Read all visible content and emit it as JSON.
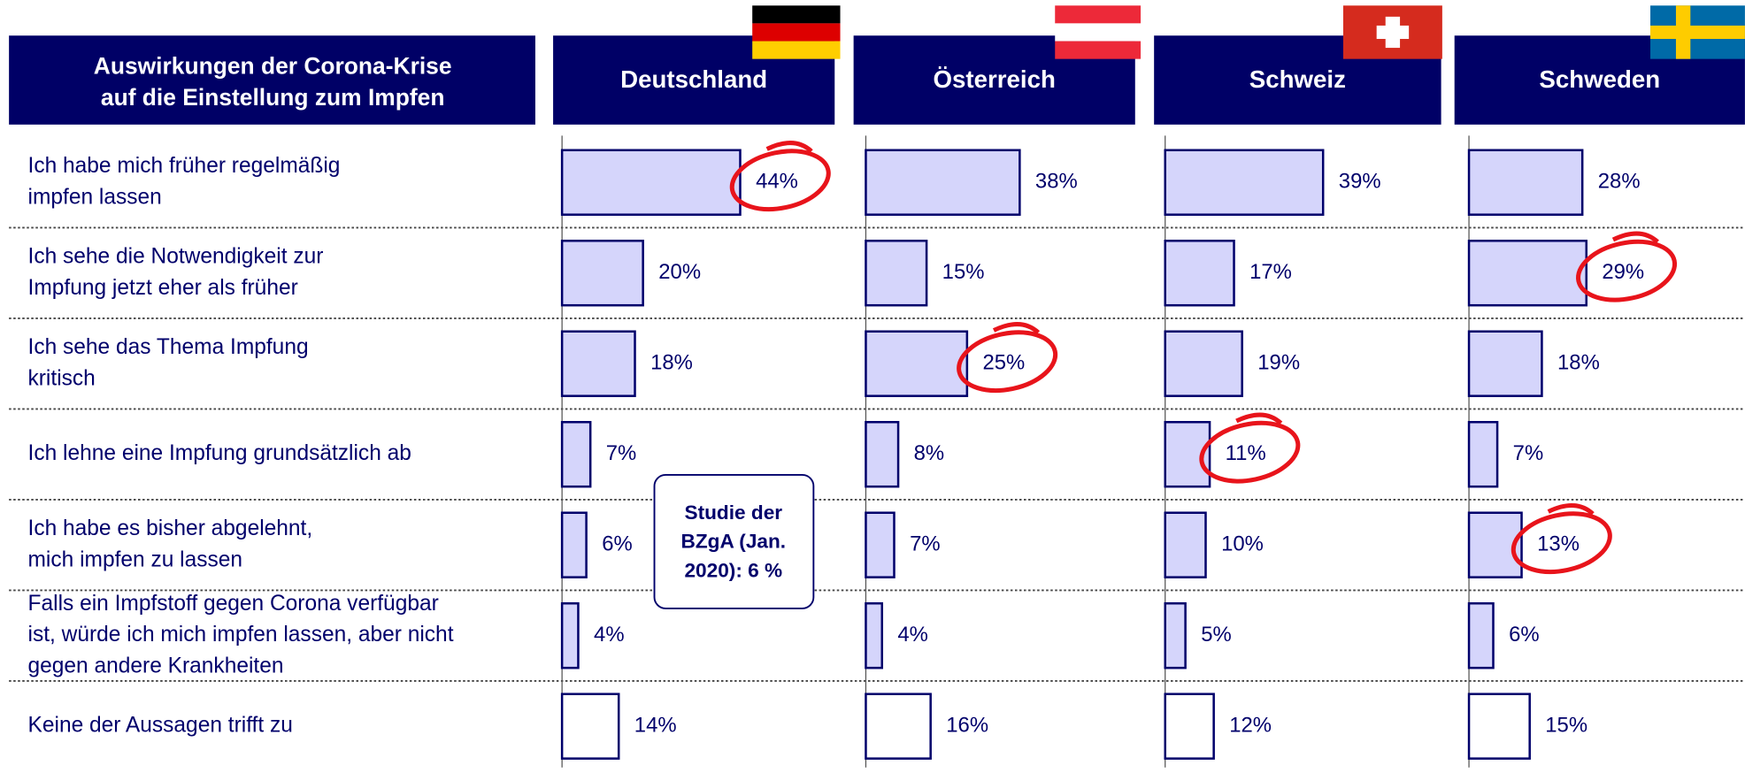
{
  "chart_data": {
    "type": "bar",
    "orientation": "horizontal",
    "title": [
      "Auswirkungen der Corona-Krise",
      "auf die Einstellung zum Impfen"
    ],
    "categories": [
      [
        "Ich habe mich früher regelmäßig",
        "impfen lassen"
      ],
      [
        "Ich sehe die Notwendigkeit zur",
        "Impfung jetzt eher als früher"
      ],
      [
        "Ich sehe das Thema Impfung",
        "kritisch"
      ],
      [
        "Ich lehne eine Impfung grundsätzlich ab"
      ],
      [
        "Ich habe es bisher abgelehnt,",
        "mich impfen zu lassen"
      ],
      [
        "Falls ein Impfstoff gegen Corona verfügbar",
        "ist, würde ich mich impfen lassen, aber nicht",
        "gegen andere Krankheiten"
      ],
      [
        "Keine der Aussagen trifft zu"
      ]
    ],
    "bar_colors": [
      "#d5d5fb",
      "#d5d5fb",
      "#d5d5fb",
      "#d5d5fb",
      "#d5d5fb",
      "#d5d5fb",
      "#ffffff"
    ],
    "bar_edge_color": "#00006b",
    "header_color": "#000066",
    "highlight_color": "#e8141b",
    "xlim": [
      0,
      72
    ],
    "series": [
      {
        "name": "Deutschland",
        "values": [
          44,
          20,
          18,
          7,
          6,
          4,
          14
        ],
        "value_labels": [
          "44%",
          "20%",
          "18%",
          "7%",
          "6%",
          "4%",
          "14%"
        ],
        "highlighted": [
          0
        ]
      },
      {
        "name": "Österreich",
        "values": [
          38,
          15,
          25,
          8,
          7,
          4,
          16
        ],
        "value_labels": [
          "38%",
          "15%",
          "25%",
          "8%",
          "7%",
          "4%",
          "16%"
        ],
        "highlighted": [
          2
        ]
      },
      {
        "name": "Schweiz",
        "values": [
          39,
          17,
          19,
          11,
          10,
          5,
          12
        ],
        "value_labels": [
          "39%",
          "17%",
          "19%",
          "11%",
          "10%",
          "5%",
          "12%"
        ],
        "highlighted": [
          3
        ]
      },
      {
        "name": "Schweden",
        "values": [
          28,
          29,
          18,
          7,
          13,
          6,
          15
        ],
        "value_labels": [
          "28%",
          "29%",
          "18%",
          "7%",
          "13%",
          "6%",
          "15%"
        ],
        "highlighted": [
          1,
          4
        ]
      }
    ],
    "annotation": [
      "Studie der",
      "BZgA (Jan.",
      "2020): 6 %"
    ]
  }
}
